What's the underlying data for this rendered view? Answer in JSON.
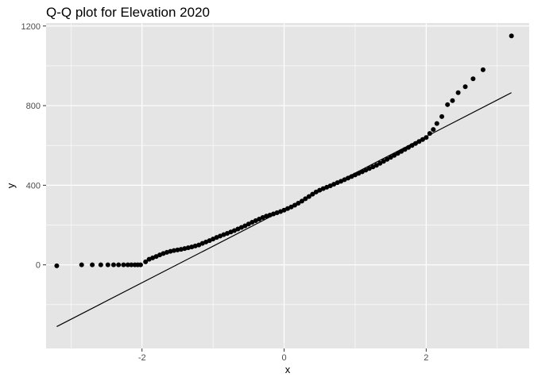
{
  "chart_data": {
    "type": "scatter",
    "title": "Q-Q plot for Elevation 2020",
    "xlabel": "x",
    "ylabel": "y",
    "xlim": [
      -3.35,
      3.45
    ],
    "ylim": [
      -420,
      1215
    ],
    "x_ticks": [
      -2,
      0,
      2
    ],
    "x_tick_labels": [
      "-2",
      "0",
      "2"
    ],
    "y_ticks": [
      0,
      400,
      800,
      1200
    ],
    "y_tick_labels": [
      "0",
      "400",
      "800",
      "1200"
    ],
    "grid": true,
    "legend": "none",
    "colors": {
      "panel": "#e5e5e5",
      "grid": "#ffffff",
      "points": "#000000",
      "line": "#000000"
    },
    "reference_line": {
      "x": [
        -3.2,
        3.2
      ],
      "y": [
        -310,
        865
      ]
    },
    "points": {
      "x": [
        -3.2,
        -2.85,
        -2.7,
        -2.58,
        -2.48,
        -2.4,
        -2.33,
        -2.26,
        -2.2,
        -2.15,
        -2.1,
        -2.06,
        -2.02,
        -1.95,
        -1.9,
        -1.85,
        -1.8,
        -1.75,
        -1.7,
        -1.65,
        -1.6,
        -1.55,
        -1.5,
        -1.45,
        -1.4,
        -1.35,
        -1.3,
        -1.25,
        -1.2,
        -1.15,
        -1.1,
        -1.05,
        -1.0,
        -0.95,
        -0.9,
        -0.85,
        -0.8,
        -0.75,
        -0.7,
        -0.65,
        -0.6,
        -0.55,
        -0.5,
        -0.45,
        -0.4,
        -0.35,
        -0.3,
        -0.25,
        -0.2,
        -0.15,
        -0.1,
        -0.05,
        0.0,
        0.05,
        0.1,
        0.15,
        0.2,
        0.25,
        0.3,
        0.35,
        0.4,
        0.45,
        0.5,
        0.55,
        0.6,
        0.65,
        0.7,
        0.75,
        0.8,
        0.85,
        0.9,
        0.95,
        1.0,
        1.05,
        1.1,
        1.15,
        1.2,
        1.25,
        1.3,
        1.35,
        1.4,
        1.45,
        1.5,
        1.55,
        1.6,
        1.65,
        1.7,
        1.75,
        1.8,
        1.85,
        1.9,
        1.95,
        2.0,
        2.05,
        2.1,
        2.15,
        2.22,
        2.3,
        2.37,
        2.45,
        2.55,
        2.66,
        2.8,
        3.2
      ],
      "y": [
        -5,
        0,
        0,
        0,
        0,
        0,
        0,
        0,
        0,
        0,
        0,
        0,
        0,
        15,
        28,
        35,
        42,
        50,
        57,
        63,
        68,
        72,
        75,
        78,
        82,
        86,
        90,
        95,
        100,
        108,
        115,
        122,
        130,
        138,
        145,
        152,
        158,
        165,
        172,
        180,
        188,
        196,
        205,
        214,
        222,
        230,
        238,
        245,
        250,
        256,
        262,
        268,
        275,
        283,
        291,
        300,
        310,
        320,
        332,
        343,
        355,
        366,
        375,
        383,
        390,
        397,
        405,
        413,
        420,
        428,
        436,
        444,
        452,
        460,
        468,
        476,
        484,
        492,
        500,
        510,
        520,
        530,
        540,
        550,
        560,
        570,
        580,
        590,
        600,
        610,
        620,
        630,
        640,
        660,
        680,
        710,
        745,
        805,
        825,
        865,
        895,
        935,
        980,
        1150
      ]
    }
  }
}
